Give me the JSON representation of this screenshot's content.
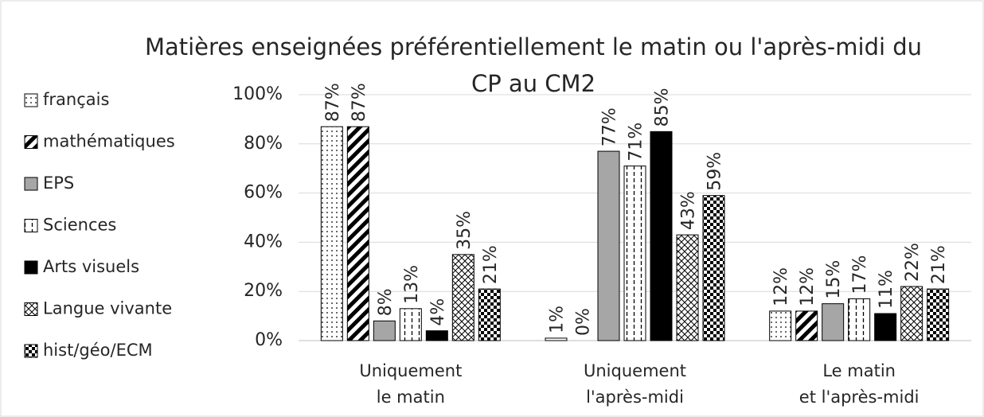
{
  "chart_data": {
    "type": "bar",
    "title": "Matières enseignées préférentiellement le matin ou l'après-midi du CP au CM2",
    "categories": [
      "Uniquement\nle matin",
      "Uniquement\nl'après-midi",
      "Le matin\net l'après-midi"
    ],
    "series": [
      {
        "name": "français",
        "color": "#ffffff",
        "pattern": "dots",
        "values": [
          87,
          1,
          12
        ],
        "value_labels": [
          "87%",
          "1%",
          "12%"
        ]
      },
      {
        "name": "mathématiques",
        "color": "#000000",
        "pattern": "diagonal",
        "values": [
          87,
          0,
          12
        ],
        "value_labels": [
          "87%",
          "0%",
          "12%"
        ]
      },
      {
        "name": "EPS",
        "color": "#a6a6a6",
        "pattern": "solid",
        "values": [
          8,
          77,
          15
        ],
        "value_labels": [
          "8%",
          "77%",
          "15%"
        ]
      },
      {
        "name": "Sciences",
        "color": "#ffffff",
        "pattern": "dashed-vertical",
        "values": [
          13,
          71,
          17
        ],
        "value_labels": [
          "13%",
          "71%",
          "17%"
        ]
      },
      {
        "name": "Arts visuels",
        "color": "#000000",
        "pattern": "solid",
        "values": [
          4,
          85,
          11
        ],
        "value_labels": [
          "4%",
          "85%",
          "11%"
        ]
      },
      {
        "name": "Langue vivante",
        "color": "#ffffff",
        "pattern": "crosshatch",
        "values": [
          35,
          43,
          22
        ],
        "value_labels": [
          "35%",
          "43%",
          "22%"
        ]
      },
      {
        "name": "hist/géo/ECM",
        "color": "#000000",
        "pattern": "checker",
        "values": [
          21,
          59,
          21
        ],
        "value_labels": [
          "21%",
          "59%",
          "21%"
        ]
      }
    ],
    "ylim": [
      0,
      100
    ],
    "yticks": [
      {
        "value": 0,
        "label": "0%"
      },
      {
        "value": 20,
        "label": "20%"
      },
      {
        "value": 40,
        "label": "40%"
      },
      {
        "value": 60,
        "label": "60%"
      },
      {
        "value": 80,
        "label": "80%"
      },
      {
        "value": 100,
        "label": "100%"
      }
    ],
    "grid": true,
    "legend": "left"
  }
}
